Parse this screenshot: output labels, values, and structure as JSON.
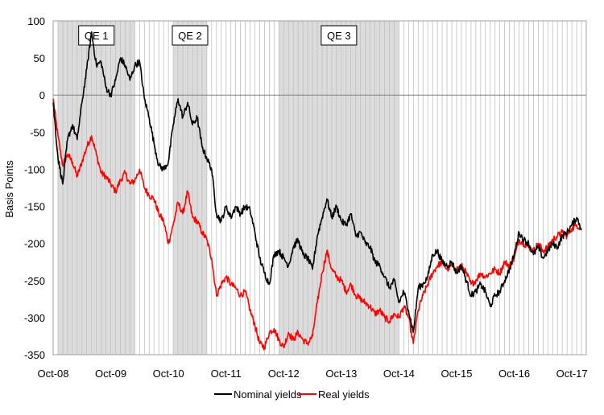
{
  "chart_data": {
    "type": "line",
    "title": "",
    "ylabel": "Basis Points",
    "xlabel": "",
    "ylim": [
      -350,
      100
    ],
    "yticks": [
      100,
      50,
      0,
      -50,
      -100,
      -150,
      -200,
      -250,
      -300,
      -350
    ],
    "x_range": [
      "2008-10",
      "2017-12"
    ],
    "xtick_labels": [
      "Oct-08",
      "Oct-09",
      "Oct-10",
      "Oct-11",
      "Oct-12",
      "Oct-13",
      "Oct-14",
      "Oct-15",
      "Oct-16",
      "Oct-17"
    ],
    "legend_position": "bottom",
    "grid": "vertical monthly lines, horizontal zero line",
    "shaded_periods": [
      {
        "label": "QE 1",
        "start": "2008-11",
        "end": "2010-03"
      },
      {
        "label": "QE 2",
        "start": "2010-11",
        "end": "2011-06"
      },
      {
        "label": "QE 3",
        "start": "2012-09",
        "end": "2014-10"
      }
    ],
    "series": [
      {
        "name": "Nominal yields",
        "color": "#000000",
        "points": [
          [
            "2008-10",
            -10
          ],
          [
            "2008-11",
            -85
          ],
          [
            "2008-12",
            -120
          ],
          [
            "2009-01",
            -60
          ],
          [
            "2009-02",
            -40
          ],
          [
            "2009-03",
            -60
          ],
          [
            "2009-04",
            -10
          ],
          [
            "2009-05",
            35
          ],
          [
            "2009-06",
            85
          ],
          [
            "2009-07",
            40
          ],
          [
            "2009-08",
            45
          ],
          [
            "2009-09",
            10
          ],
          [
            "2009-10",
            0
          ],
          [
            "2009-11",
            20
          ],
          [
            "2009-12",
            50
          ],
          [
            "2010-01",
            40
          ],
          [
            "2010-02",
            20
          ],
          [
            "2010-03",
            40
          ],
          [
            "2010-04",
            45
          ],
          [
            "2010-05",
            -5
          ],
          [
            "2010-06",
            -30
          ],
          [
            "2010-07",
            -65
          ],
          [
            "2010-08",
            -95
          ],
          [
            "2010-09",
            -100
          ],
          [
            "2010-10",
            -90
          ],
          [
            "2010-11",
            -40
          ],
          [
            "2010-12",
            -5
          ],
          [
            "2011-01",
            -30
          ],
          [
            "2011-02",
            -10
          ],
          [
            "2011-03",
            -40
          ],
          [
            "2011-04",
            -30
          ],
          [
            "2011-05",
            -70
          ],
          [
            "2011-06",
            -85
          ],
          [
            "2011-07",
            -100
          ],
          [
            "2011-08",
            -160
          ],
          [
            "2011-09",
            -170
          ],
          [
            "2011-10",
            -150
          ],
          [
            "2011-11",
            -165
          ],
          [
            "2011-12",
            -150
          ],
          [
            "2012-01",
            -160
          ],
          [
            "2012-02",
            -150
          ],
          [
            "2012-03",
            -155
          ],
          [
            "2012-04",
            -185
          ],
          [
            "2012-05",
            -220
          ],
          [
            "2012-06",
            -240
          ],
          [
            "2012-07",
            -255
          ],
          [
            "2012-08",
            -215
          ],
          [
            "2012-09",
            -210
          ],
          [
            "2012-10",
            -220
          ],
          [
            "2012-11",
            -230
          ],
          [
            "2012-12",
            -205
          ],
          [
            "2013-01",
            -195
          ],
          [
            "2013-02",
            -215
          ],
          [
            "2013-03",
            -220
          ],
          [
            "2013-04",
            -235
          ],
          [
            "2013-05",
            -190
          ],
          [
            "2013-06",
            -165
          ],
          [
            "2013-07",
            -140
          ],
          [
            "2013-08",
            -165
          ],
          [
            "2013-09",
            -150
          ],
          [
            "2013-10",
            -170
          ],
          [
            "2013-11",
            -175
          ],
          [
            "2013-12",
            -160
          ],
          [
            "2014-01",
            -190
          ],
          [
            "2014-02",
            -185
          ],
          [
            "2014-03",
            -200
          ],
          [
            "2014-04",
            -205
          ],
          [
            "2014-05",
            -225
          ],
          [
            "2014-06",
            -230
          ],
          [
            "2014-07",
            -245
          ],
          [
            "2014-08",
            -260
          ],
          [
            "2014-09",
            -250
          ],
          [
            "2014-10",
            -280
          ],
          [
            "2014-11",
            -265
          ],
          [
            "2014-12",
            -290
          ],
          [
            "2015-01",
            -320
          ],
          [
            "2015-02",
            -260
          ],
          [
            "2015-03",
            -255
          ],
          [
            "2015-04",
            -245
          ],
          [
            "2015-05",
            -215
          ],
          [
            "2015-06",
            -210
          ],
          [
            "2015-07",
            -225
          ],
          [
            "2015-08",
            -230
          ],
          [
            "2015-09",
            -225
          ],
          [
            "2015-10",
            -240
          ],
          [
            "2015-11",
            -230
          ],
          [
            "2015-12",
            -250
          ],
          [
            "2016-01",
            -270
          ],
          [
            "2016-02",
            -265
          ],
          [
            "2016-03",
            -255
          ],
          [
            "2016-04",
            -265
          ],
          [
            "2016-05",
            -285
          ],
          [
            "2016-06",
            -270
          ],
          [
            "2016-07",
            -265
          ],
          [
            "2016-08",
            -250
          ],
          [
            "2016-09",
            -235
          ],
          [
            "2016-10",
            -215
          ],
          [
            "2016-11",
            -185
          ],
          [
            "2016-12",
            -195
          ],
          [
            "2017-01",
            -200
          ],
          [
            "2017-02",
            -215
          ],
          [
            "2017-03",
            -205
          ],
          [
            "2017-04",
            -220
          ],
          [
            "2017-05",
            -210
          ],
          [
            "2017-06",
            -200
          ],
          [
            "2017-07",
            -205
          ],
          [
            "2017-08",
            -190
          ],
          [
            "2017-09",
            -185
          ],
          [
            "2017-10",
            -175
          ],
          [
            "2017-11",
            -165
          ],
          [
            "2017-12",
            -180
          ]
        ]
      },
      {
        "name": "Real yields",
        "color": "#ff0000",
        "points": [
          [
            "2008-10",
            -5
          ],
          [
            "2008-11",
            -55
          ],
          [
            "2008-12",
            -95
          ],
          [
            "2009-01",
            -80
          ],
          [
            "2009-02",
            -90
          ],
          [
            "2009-03",
            -110
          ],
          [
            "2009-04",
            -90
          ],
          [
            "2009-05",
            -70
          ],
          [
            "2009-06",
            -55
          ],
          [
            "2009-07",
            -80
          ],
          [
            "2009-08",
            -105
          ],
          [
            "2009-09",
            -110
          ],
          [
            "2009-10",
            -120
          ],
          [
            "2009-11",
            -130
          ],
          [
            "2009-12",
            -115
          ],
          [
            "2010-01",
            -105
          ],
          [
            "2010-02",
            -120
          ],
          [
            "2010-03",
            -115
          ],
          [
            "2010-04",
            -100
          ],
          [
            "2010-05",
            -125
          ],
          [
            "2010-06",
            -135
          ],
          [
            "2010-07",
            -140
          ],
          [
            "2010-08",
            -160
          ],
          [
            "2010-09",
            -170
          ],
          [
            "2010-10",
            -200
          ],
          [
            "2010-11",
            -175
          ],
          [
            "2010-12",
            -145
          ],
          [
            "2011-01",
            -160
          ],
          [
            "2011-02",
            -130
          ],
          [
            "2011-03",
            -165
          ],
          [
            "2011-04",
            -170
          ],
          [
            "2011-05",
            -185
          ],
          [
            "2011-06",
            -195
          ],
          [
            "2011-07",
            -220
          ],
          [
            "2011-08",
            -270
          ],
          [
            "2011-09",
            -255
          ],
          [
            "2011-10",
            -245
          ],
          [
            "2011-11",
            -255
          ],
          [
            "2011-12",
            -260
          ],
          [
            "2012-01",
            -270
          ],
          [
            "2012-02",
            -265
          ],
          [
            "2012-03",
            -290
          ],
          [
            "2012-04",
            -310
          ],
          [
            "2012-05",
            -335
          ],
          [
            "2012-06",
            -340
          ],
          [
            "2012-07",
            -320
          ],
          [
            "2012-08",
            -315
          ],
          [
            "2012-09",
            -330
          ],
          [
            "2012-10",
            -340
          ],
          [
            "2012-11",
            -320
          ],
          [
            "2012-12",
            -330
          ],
          [
            "2013-01",
            -320
          ],
          [
            "2013-02",
            -330
          ],
          [
            "2013-03",
            -335
          ],
          [
            "2013-04",
            -325
          ],
          [
            "2013-05",
            -280
          ],
          [
            "2013-06",
            -240
          ],
          [
            "2013-07",
            -210
          ],
          [
            "2013-08",
            -235
          ],
          [
            "2013-09",
            -245
          ],
          [
            "2013-10",
            -250
          ],
          [
            "2013-11",
            -265
          ],
          [
            "2013-12",
            -255
          ],
          [
            "2014-01",
            -270
          ],
          [
            "2014-02",
            -275
          ],
          [
            "2014-03",
            -280
          ],
          [
            "2014-04",
            -285
          ],
          [
            "2014-05",
            -295
          ],
          [
            "2014-06",
            -290
          ],
          [
            "2014-07",
            -300
          ],
          [
            "2014-08",
            -305
          ],
          [
            "2014-09",
            -295
          ],
          [
            "2014-10",
            -300
          ],
          [
            "2014-11",
            -285
          ],
          [
            "2014-12",
            -300
          ],
          [
            "2015-01",
            -335
          ],
          [
            "2015-02",
            -290
          ],
          [
            "2015-03",
            -270
          ],
          [
            "2015-04",
            -255
          ],
          [
            "2015-05",
            -240
          ],
          [
            "2015-06",
            -230
          ],
          [
            "2015-07",
            -225
          ],
          [
            "2015-08",
            -235
          ],
          [
            "2015-09",
            -230
          ],
          [
            "2015-10",
            -235
          ],
          [
            "2015-11",
            -230
          ],
          [
            "2015-12",
            -240
          ],
          [
            "2016-01",
            -255
          ],
          [
            "2016-02",
            -250
          ],
          [
            "2016-03",
            -240
          ],
          [
            "2016-04",
            -245
          ],
          [
            "2016-05",
            -240
          ],
          [
            "2016-06",
            -235
          ],
          [
            "2016-07",
            -240
          ],
          [
            "2016-08",
            -225
          ],
          [
            "2016-09",
            -230
          ],
          [
            "2016-10",
            -220
          ],
          [
            "2016-11",
            -195
          ],
          [
            "2016-12",
            -200
          ],
          [
            "2017-01",
            -205
          ],
          [
            "2017-02",
            -210
          ],
          [
            "2017-03",
            -200
          ],
          [
            "2017-04",
            -210
          ],
          [
            "2017-05",
            -205
          ],
          [
            "2017-06",
            -195
          ],
          [
            "2017-07",
            -190
          ],
          [
            "2017-08",
            -185
          ],
          [
            "2017-09",
            -190
          ],
          [
            "2017-10",
            -180
          ],
          [
            "2017-11",
            -175
          ],
          [
            "2017-12",
            -180
          ]
        ]
      }
    ]
  }
}
